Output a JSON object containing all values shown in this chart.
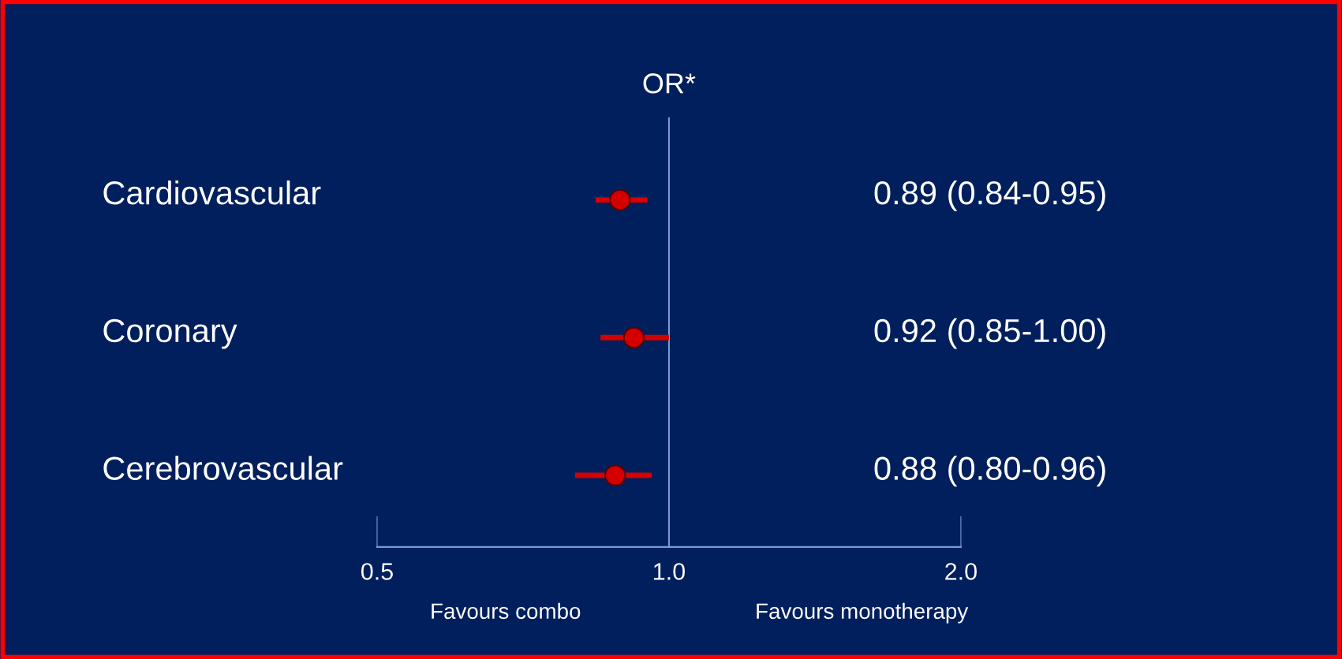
{
  "chart_data": {
    "type": "scatter",
    "orientation": "horizontal",
    "title": "OR*",
    "categories": [
      "Cardiovascular",
      "Coronary",
      "Cerebrovascular"
    ],
    "series": [
      {
        "color": "#d40000",
        "values": [
          0.89,
          0.92,
          0.88
        ],
        "errors": [
          [
            0.84,
            0.95
          ],
          [
            0.85,
            1.0
          ],
          [
            0.8,
            0.96
          ]
        ],
        "value_labels": [
          "0.89 (0.84-0.95)",
          "0.92 (0.85-1.00)",
          "0.88 (0.80-0.96)"
        ]
      }
    ],
    "log": "x",
    "xlim": [
      0.5,
      2.0
    ],
    "xticks": [
      {
        "value": 0.5,
        "label": "0.5"
      },
      {
        "value": 1.0,
        "label": "1.0"
      },
      {
        "value": 2.0,
        "label": "2.0"
      }
    ],
    "ref_lines": [
      {
        "axis": "x",
        "value": 1.0,
        "color": "#6f9fd8"
      }
    ],
    "marker": "circle",
    "grid": false,
    "legend": false,
    "tick_labels": "x",
    "annotations": [
      "Favours combo",
      "Favours monotherapy"
    ]
  }
}
